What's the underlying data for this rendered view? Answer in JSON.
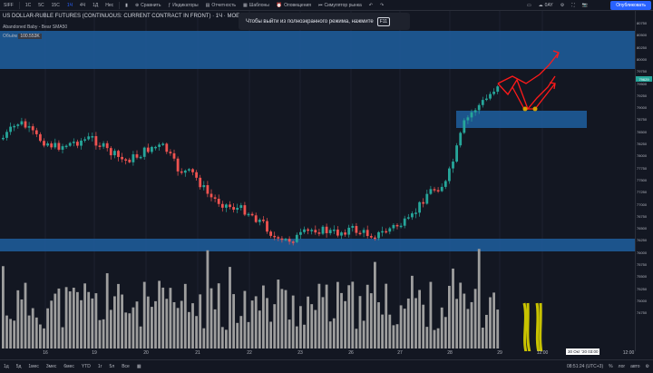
{
  "toolbar": {
    "symbol": "SIFF",
    "intervals": [
      "1С",
      "5С",
      "15С",
      "1Ч",
      "4Ч",
      "1Д",
      "Нес"
    ],
    "active_interval": "1Ч",
    "compare": "Сравнить",
    "indicators": "Индикаторы",
    "reports": "Отчетность",
    "templates": "Шаблоны",
    "alerts": "Оповещения",
    "simulator": "Симулятор рынка",
    "account": "0AY",
    "publish": "Опубликовать"
  },
  "legend": {
    "title": "US DOLLAR-RUBLE FUTURES (CONTINUOUS: CURRENT CONTRACT IN FRONT) · 1Ч · MOEX",
    "indicator": "Abandoned Baby - Bear SMA50",
    "volume_label": "Объём",
    "volume_value": "100.553K"
  },
  "toast": {
    "text": "Чтобы выйти из полноэкранного режима, нажмите",
    "key": "F11"
  },
  "price_axis": {
    "ticks": [
      "80750",
      "80500",
      "80250",
      "80000",
      "79750",
      "79500",
      "79250",
      "79000",
      "78750",
      "78500",
      "78250",
      "78000",
      "77750",
      "77500",
      "77250",
      "77000",
      "76750",
      "76500",
      "76250",
      "76000",
      "75750",
      "75500",
      "75250",
      "75000",
      "74750"
    ],
    "last_price": "79629"
  },
  "time_axis": {
    "ticks": [
      "16",
      "19",
      "20",
      "21",
      "22",
      "23",
      "26",
      "27",
      "28",
      "29",
      "12:00",
      "12:00"
    ],
    "date_badge": "30 Окт '20  03:00"
  },
  "bottombar": {
    "ranges": [
      "1д",
      "5д",
      "1мес",
      "3мес",
      "6мес",
      "YTD",
      "1г",
      "5л",
      "Все"
    ],
    "clock": "08:51:24 (UTC+3)",
    "opts": [
      "%",
      "лог",
      "авто"
    ]
  },
  "colors": {
    "background": "#131722",
    "up": "#26a69a",
    "down": "#ef5350",
    "zone": "#1f5f9f",
    "volume": "#9e9e9e",
    "annotation_red": "#ff1a1a",
    "annotation_yellow": "#c9c300"
  }
}
